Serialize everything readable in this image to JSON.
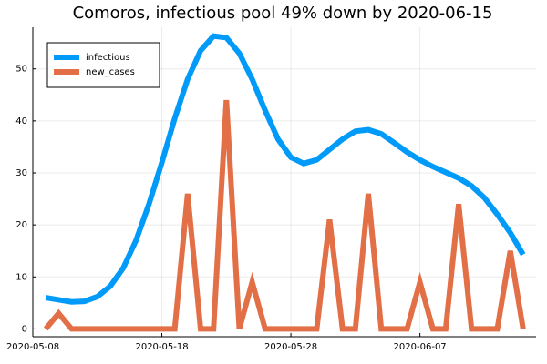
{
  "chart_data": {
    "type": "line",
    "title": "Comoros, infectious pool 49% down by 2020-06-15",
    "x": [
      "2020-05-09",
      "2020-05-10",
      "2020-05-11",
      "2020-05-12",
      "2020-05-13",
      "2020-05-14",
      "2020-05-15",
      "2020-05-16",
      "2020-05-17",
      "2020-05-18",
      "2020-05-19",
      "2020-05-20",
      "2020-05-21",
      "2020-05-22",
      "2020-05-23",
      "2020-05-24",
      "2020-05-25",
      "2020-05-26",
      "2020-05-27",
      "2020-05-28",
      "2020-05-29",
      "2020-05-30",
      "2020-05-31",
      "2020-06-01",
      "2020-06-02",
      "2020-06-03",
      "2020-06-04",
      "2020-06-05",
      "2020-06-06",
      "2020-06-07",
      "2020-06-08",
      "2020-06-09",
      "2020-06-10",
      "2020-06-11",
      "2020-06-12",
      "2020-06-13",
      "2020-06-14",
      "2020-06-15"
    ],
    "series": [
      {
        "name": "infectious",
        "color": "#009af9",
        "values": [
          6.0,
          5.6,
          5.2,
          5.3,
          6.2,
          8.2,
          11.7,
          17,
          24,
          32,
          40.5,
          48,
          53.5,
          56.3,
          56,
          53,
          48,
          42,
          36.5,
          33,
          31.8,
          32.5,
          34.5,
          36.5,
          38,
          38.3,
          37.5,
          35.8,
          34,
          32.5,
          31.2,
          30.1,
          29,
          27.5,
          25.2,
          22,
          18.5,
          14.3
        ]
      },
      {
        "name": "new_cases",
        "color": "#e26f46",
        "values": [
          0,
          3,
          0,
          0,
          0,
          0,
          0,
          0,
          0,
          0,
          0,
          26,
          0,
          0,
          44,
          0,
          9,
          0,
          0,
          0,
          0,
          0,
          21,
          0,
          0,
          26,
          0,
          0,
          0,
          9,
          0,
          0,
          24,
          0,
          0,
          0,
          15,
          0
        ]
      }
    ],
    "xlim": [
      "2020-05-08",
      "2020-06-16"
    ],
    "xticks": [
      "2020-05-08",
      "2020-05-18",
      "2020-05-28",
      "2020-06-07"
    ],
    "ylim": [
      -1.5,
      58
    ],
    "yticks": [
      0,
      10,
      20,
      30,
      40,
      50
    ],
    "grid": true,
    "legend": "top-left"
  }
}
